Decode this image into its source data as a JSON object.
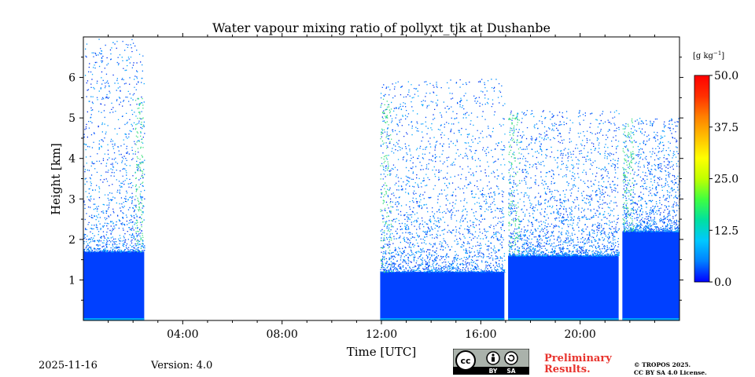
{
  "chart_data": {
    "type": "heatmap",
    "title": "Water vapour mixing ratio of pollyxt_tjk at Dushanbe",
    "xlabel": "Time [UTC]",
    "ylabel": "Height [km]",
    "xlim_hours": [
      0,
      24
    ],
    "ylim_km": [
      0,
      7
    ],
    "x_ticks": [
      {
        "hour": 4,
        "label": "04:00"
      },
      {
        "hour": 8,
        "label": "08:00"
      },
      {
        "hour": 12,
        "label": "12:00"
      },
      {
        "hour": 16,
        "label": "16:00"
      },
      {
        "hour": 20,
        "label": "20:00"
      }
    ],
    "y_ticks": [
      {
        "km": 1,
        "label": "1"
      },
      {
        "km": 2,
        "label": "2"
      },
      {
        "km": 3,
        "label": "3"
      },
      {
        "km": 4,
        "label": "4"
      },
      {
        "km": 5,
        "label": "5"
      },
      {
        "km": 6,
        "label": "6"
      }
    ],
    "colorbar": {
      "unit_label": "[g kg",
      "unit_exp": "−1",
      "unit_close": "]",
      "min": 0.0,
      "max": 50.0,
      "ticks": [
        {
          "value": 0.0,
          "label": "0.0"
        },
        {
          "value": 12.5,
          "label": "12.5"
        },
        {
          "value": 25.0,
          "label": "25.0"
        },
        {
          "value": 37.5,
          "label": "37.5"
        },
        {
          "value": 50.0,
          "label": "50.0"
        }
      ],
      "colors": [
        "#0000ff",
        "#0080ff",
        "#00c8ff",
        "#00e0a0",
        "#40ff40",
        "#c0ff00",
        "#ffff00",
        "#ffc000",
        "#ff8000",
        "#ff3000",
        "#ff0000"
      ]
    },
    "data_segments": [
      {
        "start_hour": 0.0,
        "end_hour": 2.45,
        "dense_top_km": 1.7,
        "sparse_top_km": 7.0
      },
      {
        "start_hour": 11.95,
        "end_hour": 16.95,
        "dense_top_km": 1.2,
        "sparse_top_km": 6.0
      },
      {
        "start_hour": 17.1,
        "end_hour": 21.55,
        "dense_top_km": 1.6,
        "sparse_top_km": 5.2
      },
      {
        "start_hour": 21.7,
        "end_hour": 24.0,
        "dense_top_km": 2.2,
        "sparse_top_km": 5.0
      }
    ]
  },
  "footer": {
    "date": "2025-11-16",
    "version": "Version: 4.0",
    "license_badge": {
      "cc": "cc",
      "by": "BY",
      "sa": "SA"
    },
    "preliminary_line1": "Preliminary",
    "preliminary_line2": "Results.",
    "copyright_line1": "© TROPOS 2025.",
    "copyright_line2": "CC BY SA 4.0 License."
  }
}
